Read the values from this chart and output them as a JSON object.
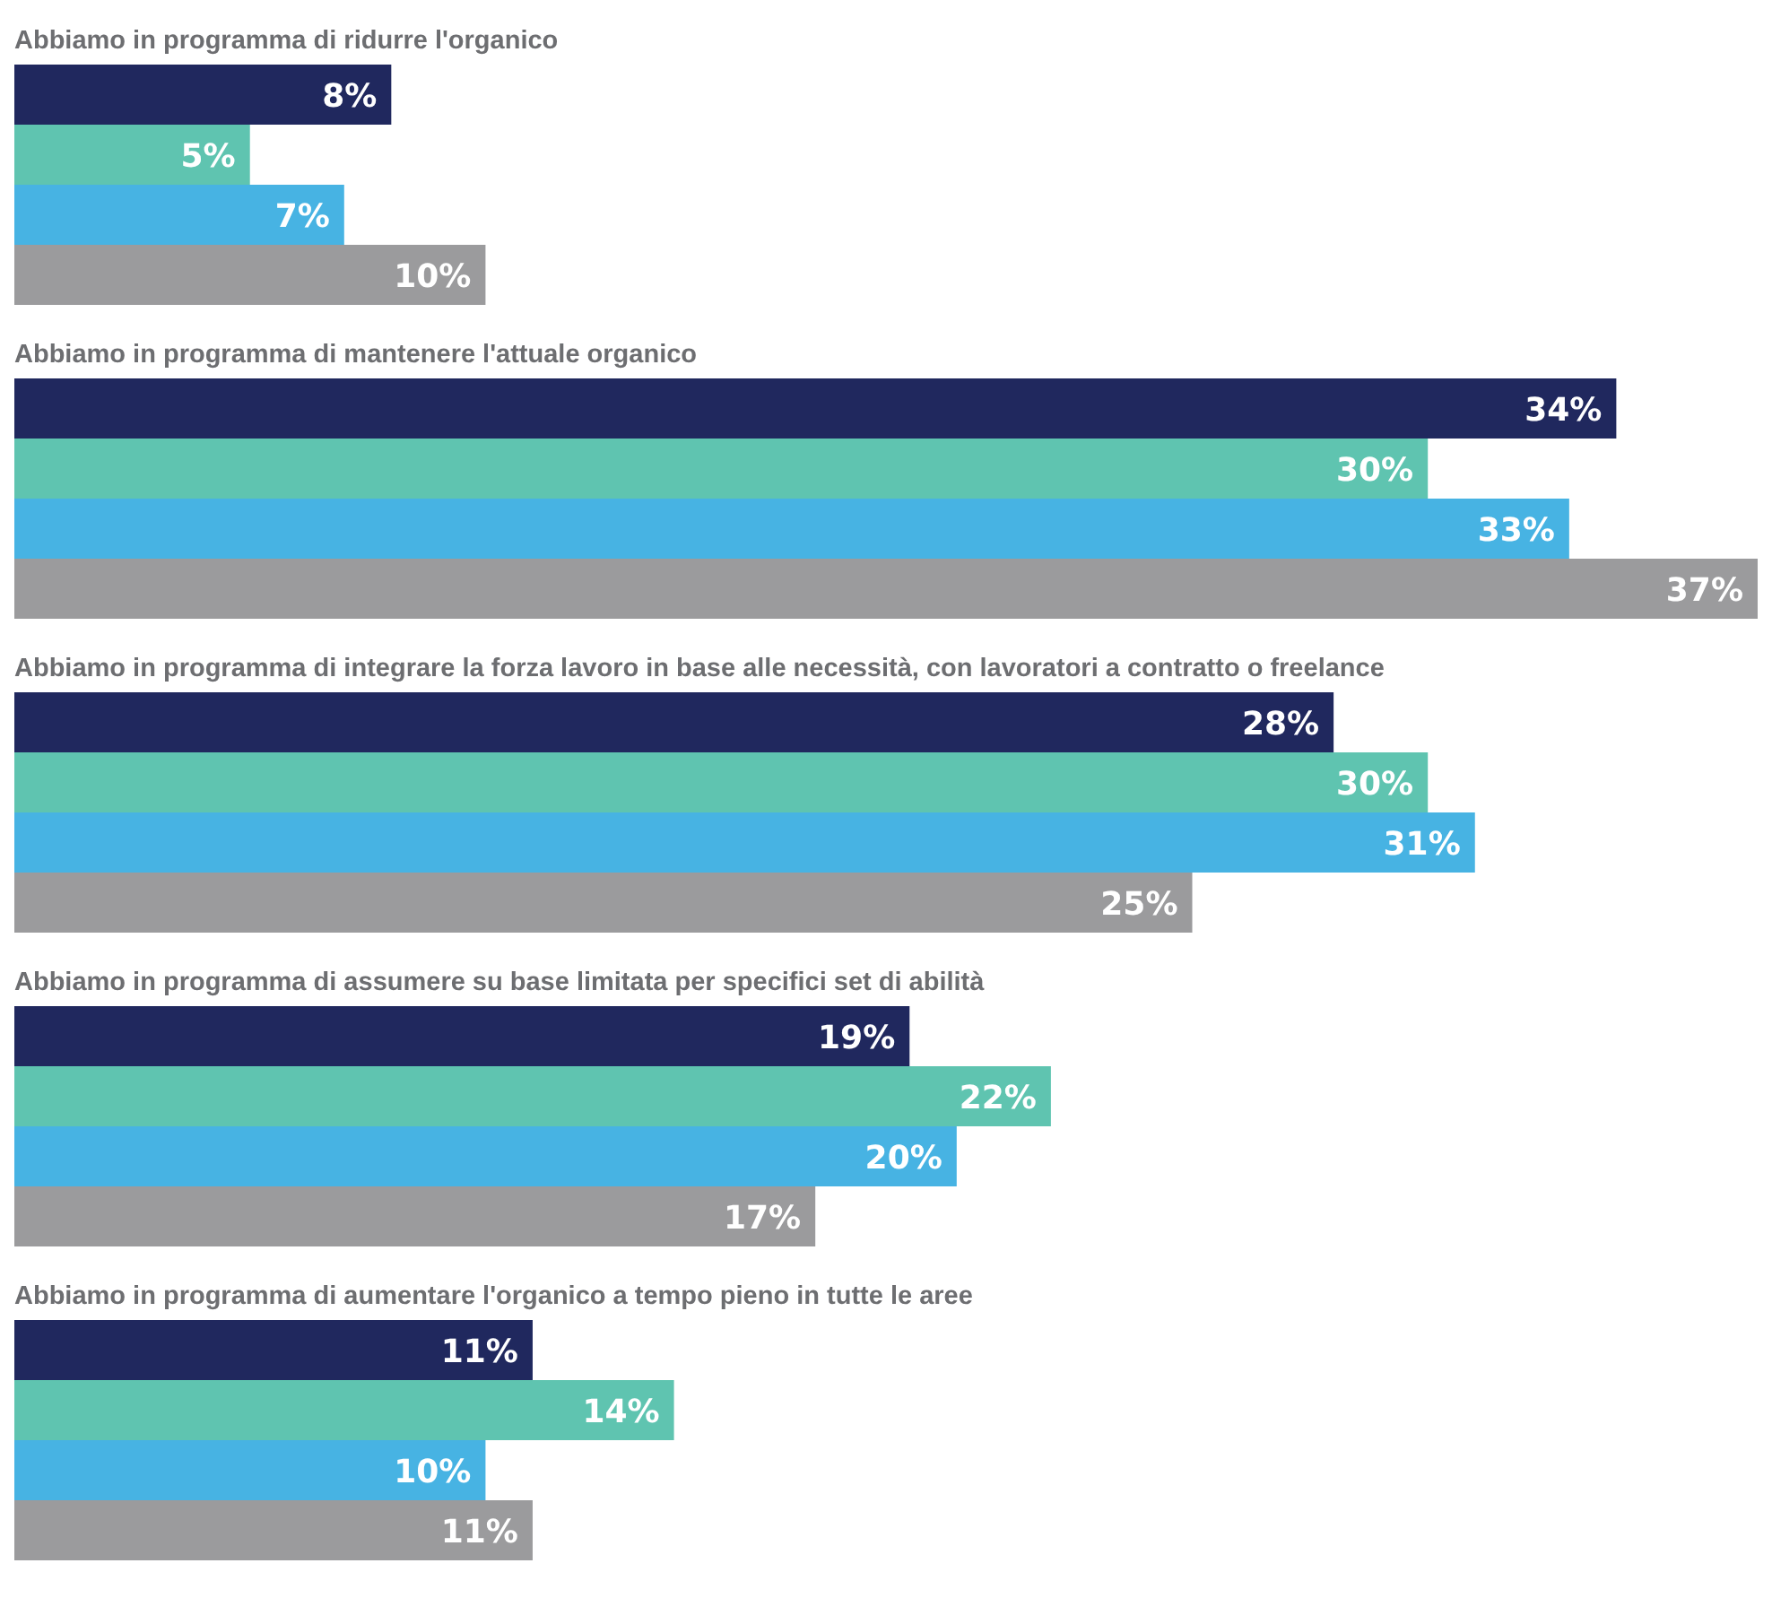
{
  "chart_data": {
    "type": "bar",
    "orientation": "horizontal",
    "categories": [
      "Abbiamo in programma di ridurre l'organico",
      "Abbiamo in programma di mantenere l'attuale organico",
      "Abbiamo in programma di integrare la forza lavoro in base alle necessità, con lavoratori a contratto o freelance",
      "Abbiamo in programma di assumere su base limitata per specifici set di abilità",
      "Abbiamo in programma di aumentare l'organico a tempo pieno in tutte le aree"
    ],
    "series": [
      {
        "color": "#20285e",
        "values": [
          8,
          34,
          28,
          19,
          11
        ],
        "value_labels": [
          "8%",
          "34%",
          "28%",
          "19%",
          "11%"
        ]
      },
      {
        "color": "#5fc4b0",
        "values": [
          5,
          30,
          30,
          22,
          14
        ],
        "value_labels": [
          "5%",
          "30%",
          "30%",
          "22%",
          "14%"
        ]
      },
      {
        "color": "#47b3e3",
        "values": [
          7,
          33,
          31,
          20,
          10
        ],
        "value_labels": [
          "7%",
          "33%",
          "31%",
          "20%",
          "10%"
        ]
      },
      {
        "color": "#9b9b9d",
        "values": [
          10,
          37,
          25,
          17,
          11
        ],
        "value_labels": [
          "10%",
          "37%",
          "25%",
          "17%",
          "11%"
        ]
      }
    ]
  }
}
